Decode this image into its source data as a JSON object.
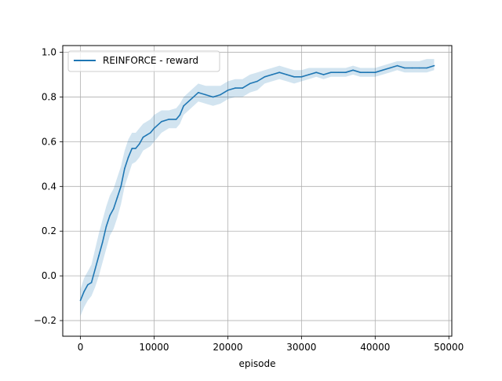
{
  "chart_data": {
    "type": "line",
    "title": "",
    "xlabel": "episode",
    "ylabel": "",
    "xlim": [
      -2400,
      50400
    ],
    "ylim": [
      -0.27,
      1.03
    ],
    "x_ticks": [
      0,
      10000,
      20000,
      30000,
      40000,
      50000
    ],
    "x_tick_labels": [
      "0",
      "10000",
      "20000",
      "30000",
      "40000",
      "50000"
    ],
    "y_ticks": [
      -0.2,
      0.0,
      0.2,
      0.4,
      0.6,
      0.8,
      1.0
    ],
    "y_tick_labels": [
      "−0.2",
      "0.0",
      "0.2",
      "0.4",
      "0.6",
      "0.8",
      "1.0"
    ],
    "grid": true,
    "legend": {
      "position": "top-left",
      "entries": [
        "REINFORCE - reward"
      ]
    },
    "colors": {
      "line": "#1f77b4",
      "band": "#1f77b4"
    },
    "series": [
      {
        "name": "REINFORCE - reward",
        "x": [
          0,
          500,
          1000,
          1500,
          2000,
          2500,
          3000,
          3500,
          4000,
          4500,
          5000,
          5500,
          6000,
          6500,
          7000,
          7500,
          8000,
          8500,
          9000,
          9500,
          10000,
          11000,
          12000,
          13000,
          13500,
          14000,
          15000,
          16000,
          17000,
          18000,
          19000,
          20000,
          21000,
          22000,
          23000,
          24000,
          25000,
          26000,
          27000,
          28000,
          29000,
          30000,
          31000,
          32000,
          33000,
          34000,
          35000,
          36000,
          37000,
          38000,
          39000,
          40000,
          41000,
          42000,
          43000,
          44000,
          45000,
          46000,
          47000,
          48000
        ],
        "y": [
          -0.11,
          -0.07,
          -0.04,
          -0.03,
          0.03,
          0.09,
          0.15,
          0.22,
          0.27,
          0.3,
          0.35,
          0.4,
          0.48,
          0.53,
          0.57,
          0.57,
          0.59,
          0.62,
          0.63,
          0.64,
          0.66,
          0.69,
          0.7,
          0.7,
          0.72,
          0.76,
          0.79,
          0.82,
          0.81,
          0.8,
          0.81,
          0.83,
          0.84,
          0.84,
          0.86,
          0.87,
          0.89,
          0.9,
          0.91,
          0.9,
          0.89,
          0.89,
          0.9,
          0.91,
          0.9,
          0.91,
          0.91,
          0.91,
          0.92,
          0.91,
          0.91,
          0.91,
          0.92,
          0.93,
          0.94,
          0.93,
          0.93,
          0.93,
          0.93,
          0.94
        ],
        "band_upper": [
          -0.06,
          -0.01,
          0.02,
          0.05,
          0.12,
          0.19,
          0.25,
          0.31,
          0.36,
          0.39,
          0.44,
          0.49,
          0.56,
          0.61,
          0.64,
          0.64,
          0.66,
          0.68,
          0.69,
          0.7,
          0.72,
          0.74,
          0.74,
          0.75,
          0.77,
          0.8,
          0.83,
          0.86,
          0.85,
          0.85,
          0.85,
          0.87,
          0.88,
          0.88,
          0.9,
          0.91,
          0.92,
          0.93,
          0.94,
          0.93,
          0.92,
          0.92,
          0.93,
          0.93,
          0.93,
          0.93,
          0.93,
          0.93,
          0.94,
          0.93,
          0.93,
          0.93,
          0.94,
          0.95,
          0.96,
          0.96,
          0.96,
          0.96,
          0.97,
          0.97
        ],
        "band_lower": [
          -0.18,
          -0.14,
          -0.11,
          -0.09,
          -0.05,
          0.0,
          0.06,
          0.12,
          0.18,
          0.21,
          0.26,
          0.32,
          0.4,
          0.45,
          0.5,
          0.51,
          0.53,
          0.56,
          0.57,
          0.58,
          0.6,
          0.64,
          0.66,
          0.66,
          0.68,
          0.72,
          0.75,
          0.78,
          0.77,
          0.76,
          0.77,
          0.79,
          0.8,
          0.8,
          0.82,
          0.83,
          0.86,
          0.87,
          0.88,
          0.87,
          0.86,
          0.87,
          0.88,
          0.89,
          0.88,
          0.89,
          0.89,
          0.89,
          0.9,
          0.89,
          0.89,
          0.89,
          0.9,
          0.91,
          0.92,
          0.91,
          0.91,
          0.91,
          0.91,
          0.92
        ]
      }
    ]
  }
}
